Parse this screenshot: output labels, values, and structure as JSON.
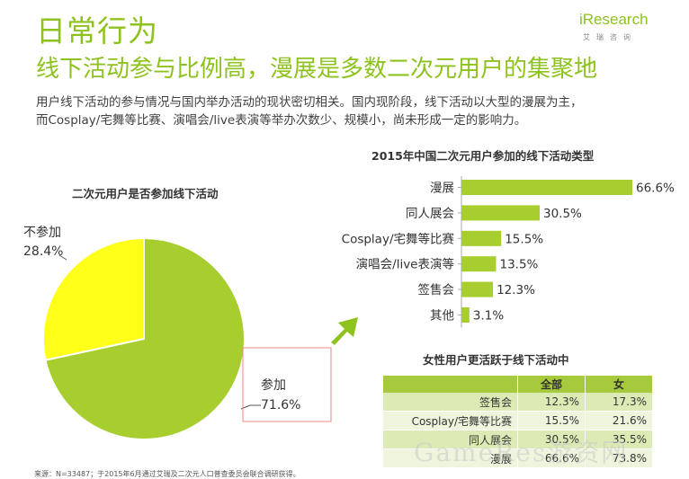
{
  "header": {
    "title": "日常行为",
    "subtitle": "线下活动参与比例高，漫展是多数二次元用户的集聚地"
  },
  "logo": {
    "main": "iResearch",
    "sub": "艾瑞咨询"
  },
  "description": {
    "line1": "用户线下活动的参与情况与国内举办活动的现状密切相关。国内现阶段，线下活动以大型的漫展为主，",
    "line2": "而Cosplay/宅舞等比赛、演唱会/live表演等举办次数少、规模小，尚未形成一定的影响力。"
  },
  "colors": {
    "green": "#8dc21f",
    "pie_participate": "#a8cd2f",
    "pie_not": "#ffff1a",
    "bar": "#a8cd2f",
    "table_header": "#a6c93e",
    "arrow": "#8dc21f",
    "highlight_box": "#e88a8a"
  },
  "chart_data": [
    {
      "type": "pie",
      "title": "二次元用户是否参加线下活动",
      "slices": [
        {
          "label": "参加",
          "value": 71.6,
          "value_label": "71.6%"
        },
        {
          "label": "不参加",
          "value": 28.4,
          "value_label": "28.4%"
        }
      ]
    },
    {
      "type": "bar",
      "orientation": "horizontal",
      "title": "2015年中国二次元用户参加的线下活动类型",
      "categories": [
        "漫展",
        "同人展会",
        "Cosplay/宅舞等比赛",
        "演唱会/live表演等",
        "签售会",
        "其他"
      ],
      "values": [
        66.6,
        30.5,
        15.5,
        13.5,
        12.3,
        3.1
      ],
      "value_labels": [
        "66.6%",
        "30.5%",
        "15.5%",
        "13.5%",
        "12.3%",
        "3.1%"
      ]
    },
    {
      "type": "table",
      "title": "女性用户更活跃于线下活动中",
      "columns": [
        "",
        "全部",
        "女"
      ],
      "rows": [
        {
          "category": "签售会",
          "all": "12.3%",
          "female": "17.3%"
        },
        {
          "category": "Cosplay/宅舞等比赛",
          "all": "15.5%",
          "female": "21.6%"
        },
        {
          "category": "同人展会",
          "all": "30.5%",
          "female": "35.5%"
        },
        {
          "category": "漫展",
          "all": "66.6%",
          "female": "73.8%"
        }
      ]
    }
  ],
  "source": "来源：N=33487；于2015年6月通过艾瑞及二次元人口普查委员会联合调研获得。",
  "watermark": "GameRes游资网"
}
